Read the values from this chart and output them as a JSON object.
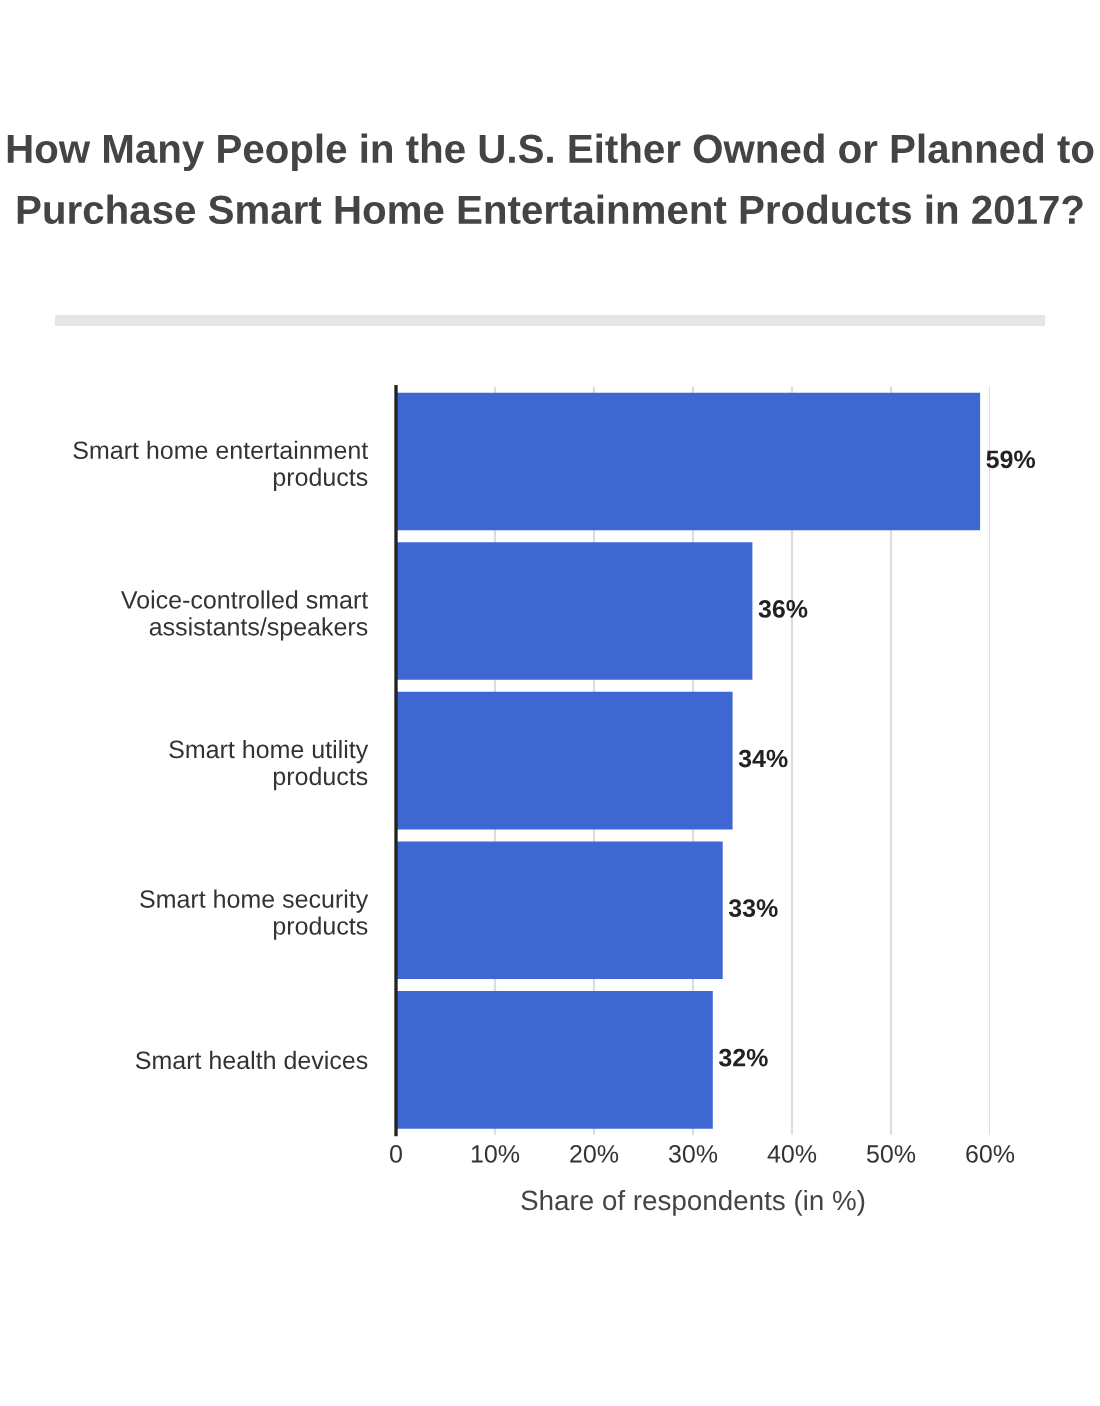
{
  "chart_data": {
    "type": "bar",
    "orientation": "horizontal",
    "title": "How Many People in the U.S. Either Owned or Planned to Purchase Smart Home Entertainment Products in 2017?",
    "xlabel": "Share of respondents (in %)",
    "categories": [
      "Smart home entertainment\nproducts",
      "Voice-controlled smart\nassistants/speakers",
      "Smart home utility\nproducts",
      "Smart home security\nproducts",
      "Smart health devices"
    ],
    "values": [
      59,
      36,
      34,
      33,
      32
    ],
    "value_labels": [
      "59%",
      "36%",
      "34%",
      "33%",
      "32%"
    ],
    "color": "#3f67d1",
    "xlim": [
      0,
      60
    ],
    "xticks": [
      0,
      {
        "value": 10,
        "label": "10%"
      },
      {
        "value": 20,
        "label": "20%"
      },
      {
        "value": 30,
        "label": "30%"
      },
      {
        "value": 40,
        "label": "40%"
      },
      {
        "value": 50,
        "label": "50%"
      },
      {
        "value": 60,
        "label": "60%"
      }
    ],
    "grid": "x"
  }
}
